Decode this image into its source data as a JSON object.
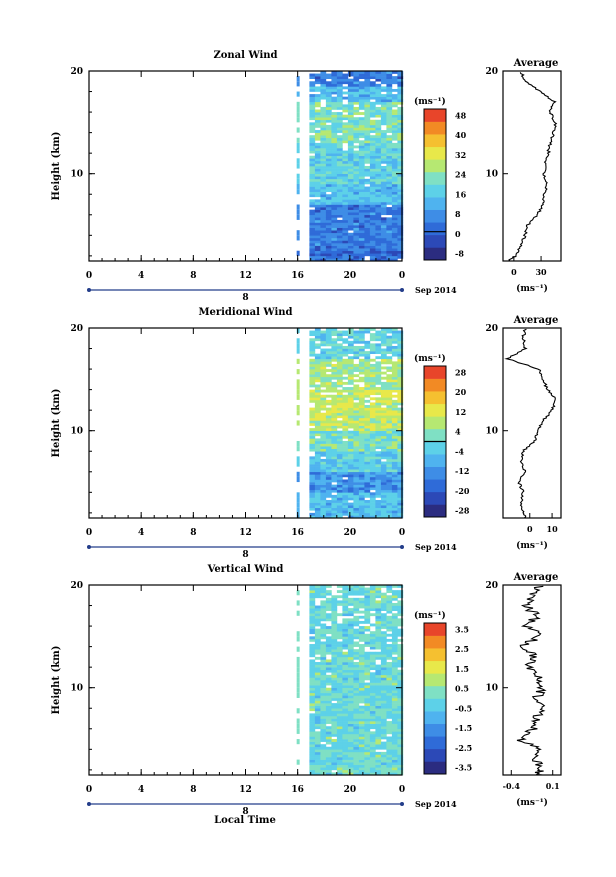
{
  "colorbar_unit": "(ms⁻¹)",
  "avg_unit": "(ms⁻¹)",
  "date_label": "Sep 2014",
  "day_label": "8",
  "xlabel": "Local Time",
  "ylabel": "Height (km)",
  "chart_data": [
    {
      "type": "heatmap",
      "title": "Zonal Wind",
      "x_ticks": [
        "0",
        "4",
        "8",
        "12",
        "16",
        "20",
        "0"
      ],
      "y_ticks": [
        "10",
        "20"
      ],
      "ylim": [
        1.5,
        20
      ],
      "data_start_hour": 16,
      "colorbar_ticks": [
        "48",
        "40",
        "32",
        "24",
        "16",
        "8",
        "0",
        "-8"
      ],
      "colorbar_range": [
        -12,
        52
      ],
      "zero_line": 0,
      "profile": {
        "title": "Average",
        "xlim": [
          -12,
          52
        ],
        "x_ticks": [
          "0",
          "30"
        ],
        "y_ticks": [
          "10",
          "20"
        ],
        "height": [
          1.5,
          2,
          3,
          4,
          5,
          6,
          7,
          8,
          9,
          10,
          11,
          12,
          13,
          14,
          15,
          16,
          17,
          18,
          19,
          20
        ],
        "value": [
          -6,
          2,
          8,
          12,
          15,
          26,
          32,
          34,
          36,
          33,
          35,
          38,
          40,
          44,
          46,
          40,
          45,
          30,
          12,
          8
        ]
      },
      "field_pattern": [
        {
          "z0": 1.5,
          "z1": 3,
          "value": 2
        },
        {
          "z0": 3,
          "z1": 7,
          "value": 4
        },
        {
          "z0": 7,
          "z1": 9,
          "value": 14
        },
        {
          "z0": 9,
          "z1": 13,
          "value": 18
        },
        {
          "z0": 13,
          "z1": 17,
          "value": 22
        },
        {
          "z0": 17,
          "z1": 18.5,
          "value": 14
        },
        {
          "z0": 18.5,
          "z1": 20,
          "value": 4
        }
      ]
    },
    {
      "type": "heatmap",
      "title": "Meridional Wind",
      "x_ticks": [
        "0",
        "4",
        "8",
        "12",
        "16",
        "20",
        "0"
      ],
      "y_ticks": [
        "10",
        "20"
      ],
      "ylim": [
        1.5,
        20
      ],
      "data_start_hour": 16,
      "colorbar_ticks": [
        "28",
        "20",
        "12",
        "4",
        "-4",
        "-12",
        "-20",
        "-28"
      ],
      "colorbar_range": [
        -32,
        32
      ],
      "zero_line": 0,
      "profile": {
        "title": "Average",
        "xlim": [
          -12,
          14
        ],
        "x_ticks": [
          "0",
          "10"
        ],
        "y_ticks": [
          "10",
          "20"
        ],
        "height": [
          1.5,
          2,
          3,
          4,
          5,
          6,
          7,
          8,
          9,
          10,
          11,
          12,
          13,
          14,
          15,
          16,
          17,
          18,
          19,
          20
        ],
        "value": [
          -2,
          -3,
          -4,
          -3,
          -5,
          -2,
          -4,
          -3,
          2,
          4,
          6,
          10,
          12,
          8,
          6,
          4,
          -10,
          -2,
          -3,
          -2
        ],
        "y_values_note_hidden": true
      },
      "field_pattern": [
        {
          "z0": 1.5,
          "z1": 4,
          "value": -6
        },
        {
          "z0": 4,
          "z1": 6,
          "value": -12
        },
        {
          "z0": 6,
          "z1": 8,
          "value": -4
        },
        {
          "z0": 8,
          "z1": 10,
          "value": 2
        },
        {
          "z0": 10,
          "z1": 14,
          "value": 10
        },
        {
          "z0": 14,
          "z1": 17,
          "value": 6
        },
        {
          "z0": 17,
          "z1": 20,
          "value": -2
        }
      ]
    },
    {
      "type": "heatmap",
      "title": "Vertical Wind",
      "x_ticks": [
        "0",
        "4",
        "8",
        "12",
        "16",
        "20",
        "0"
      ],
      "y_ticks": [
        "10",
        "20"
      ],
      "ylim": [
        1.5,
        20
      ],
      "data_start_hour": 16,
      "colorbar_ticks": [
        "3.5",
        "2.5",
        "1.5",
        "0.5",
        "-0.5",
        "-1.5",
        "-2.5",
        "-3.5"
      ],
      "colorbar_range": [
        -4,
        4
      ],
      "zero_line": null,
      "profile": {
        "title": "Average",
        "xlim": [
          -0.5,
          0.2
        ],
        "x_ticks": [
          "-0.4",
          "0.1"
        ],
        "y_ticks": [
          "10",
          "20"
        ],
        "height": [
          1.5,
          2,
          3,
          4,
          5,
          6,
          7,
          8,
          9,
          10,
          11,
          12,
          13,
          14,
          15,
          16,
          17,
          18,
          19,
          20
        ],
        "value": [
          -0.08,
          -0.05,
          -0.1,
          -0.06,
          -0.3,
          -0.12,
          -0.08,
          -0.05,
          -0.1,
          -0.02,
          -0.06,
          -0.2,
          -0.1,
          -0.3,
          -0.05,
          -0.2,
          -0.1,
          -0.22,
          -0.15,
          -0.05
        ]
      },
      "field_pattern": [
        {
          "z0": 1.5,
          "z1": 20,
          "value": 0
        }
      ]
    }
  ]
}
